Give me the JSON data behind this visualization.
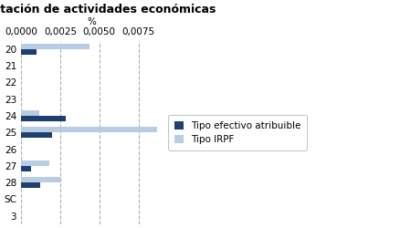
{
  "title": "Tributación de actividades económicas",
  "xlabel": "%",
  "categories": [
    "20",
    "21",
    "22",
    "23",
    "24",
    "25",
    "26",
    "27",
    "28",
    "SC",
    "3"
  ],
  "series": [
    {
      "label": "Tipo efectivo atribuible",
      "color": "#1f3f6e",
      "values": [
        0.00098,
        0,
        0,
        0,
        0.00283,
        0.00198,
        0,
        0.00063,
        0.00123,
        0,
        0
      ]
    },
    {
      "label": "Tipo IRPF",
      "color": "#b8cce4",
      "values": [
        0.00435,
        0,
        0,
        0,
        0.00118,
        0.0087,
        0,
        0.00182,
        0.0025,
        0,
        0
      ]
    }
  ],
  "xlim": [
    0,
    0.009
  ],
  "xticks": [
    0.0,
    0.0025,
    0.005,
    0.0075
  ],
  "xtick_labels": [
    "0,0000",
    "0,0025",
    "0,0050",
    "0,0075"
  ],
  "background_color": "#ffffff",
  "grid_color": "#b0b0b0",
  "title_fontsize": 9,
  "legend_fontsize": 7.5,
  "tick_fontsize": 7.5,
  "bar_height": 0.32
}
